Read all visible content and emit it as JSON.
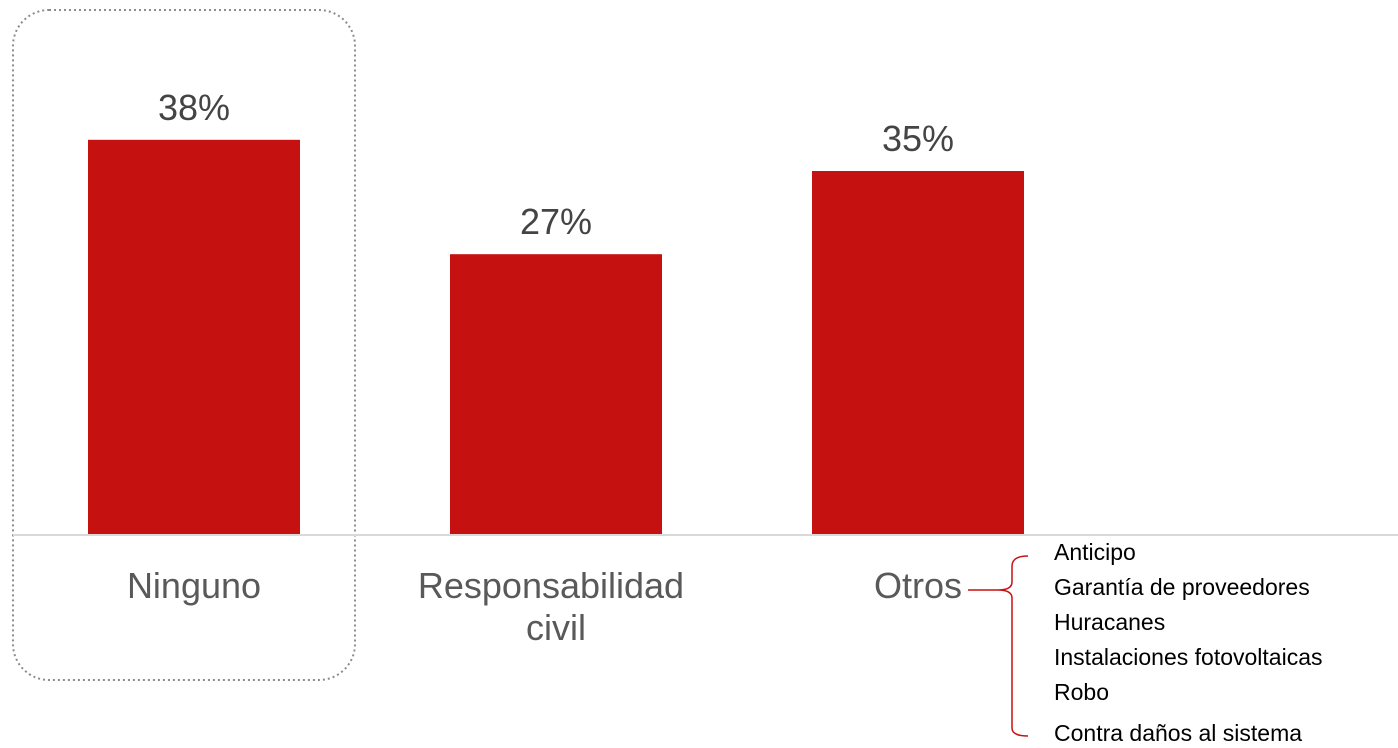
{
  "chart_data": {
    "type": "bar",
    "categories": [
      "Ninguno",
      "Responsabilidad civil",
      "Otros"
    ],
    "category_label_lines": [
      [
        "Ninguno"
      ],
      [
        "Responsabilidad",
        "civil"
      ],
      [
        "Otros"
      ]
    ],
    "values": [
      38,
      27,
      35
    ],
    "value_labels": [
      "38%",
      "27%",
      "35%"
    ],
    "ylim": [
      0,
      50
    ],
    "grid": false,
    "highlighted_category": "Ninguno",
    "bar_color": "#C61111",
    "axis_color": "#D9D9D9"
  },
  "otros_breakdown": {
    "items": [
      "Anticipo",
      "Garantía de proveedores",
      "Huracanes",
      "Instalaciones fotovoltaicas",
      "Robo",
      "Contra daños al sistema"
    ]
  }
}
